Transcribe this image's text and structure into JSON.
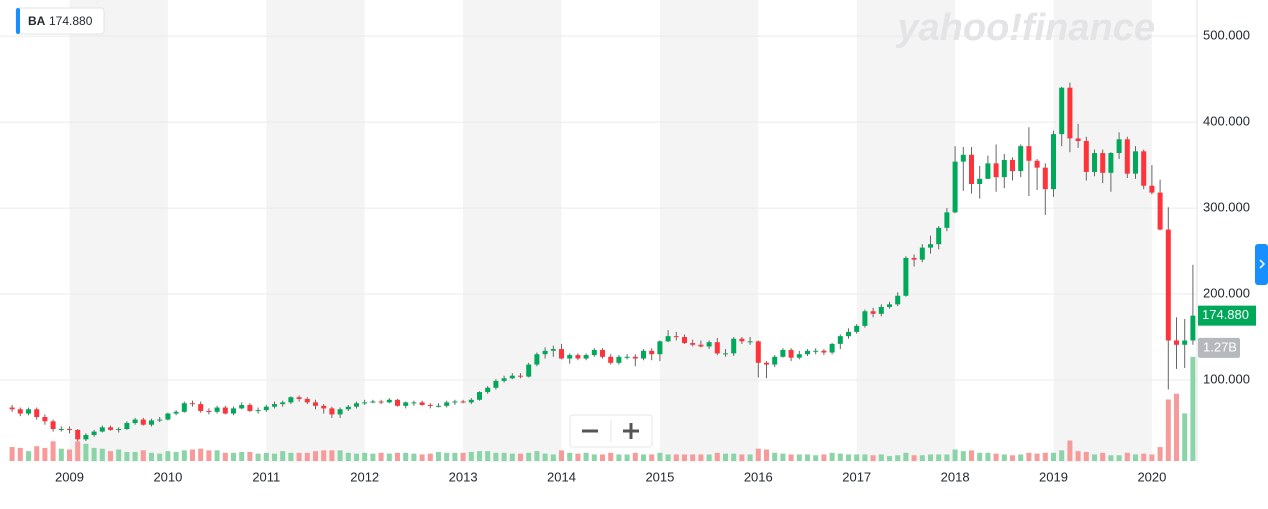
{
  "chart_data": {
    "type": "candlestick",
    "symbol": "BA",
    "last_price_label": "174.880",
    "last_volume_label": "1.27B",
    "watermark": "yahoo!finance",
    "up_color": "#00a85a",
    "down_color": "#ff333a",
    "up_volume_color": "#8ad4a8",
    "down_volume_color": "#f79a9a",
    "open": [
      68,
      66,
      61,
      66,
      57,
      52,
      43,
      43,
      42,
      31,
      36,
      40,
      45,
      42,
      43,
      50,
      54,
      48,
      53,
      54,
      61,
      63,
      73,
      72,
      64,
      63,
      68,
      61,
      67,
      71,
      64,
      65,
      69,
      72,
      74,
      80,
      78,
      74,
      70,
      67,
      60,
      66,
      69,
      73,
      74,
      75,
      74,
      77,
      70,
      74,
      74,
      71,
      70,
      70,
      74,
      75,
      74,
      77,
      86,
      91,
      99,
      102,
      105,
      104,
      118,
      130,
      134,
      136,
      125,
      129,
      125,
      129,
      135,
      127,
      120,
      127,
      127,
      125,
      134,
      130,
      145,
      151,
      150,
      143,
      141,
      139,
      144,
      131,
      131,
      148,
      145,
      145,
      120,
      118,
      127,
      135,
      126,
      130,
      134,
      134,
      132,
      142,
      151,
      156,
      163,
      180,
      177,
      185,
      188,
      198,
      242,
      240,
      254,
      258,
      277,
      295,
      354,
      362,
      328,
      334,
      352,
      336,
      356,
      343,
      372,
      355,
      347,
      322,
      386,
      440,
      381,
      378,
      342,
      364,
      341,
      364,
      380,
      340,
      366,
      326,
      318,
      275,
      146,
      141,
      146
    ],
    "high": [
      71,
      68,
      68,
      68,
      60,
      54,
      46,
      46,
      43,
      38,
      42,
      47,
      47,
      45,
      52,
      56,
      56,
      55,
      57,
      62,
      65,
      75,
      76,
      75,
      67,
      70,
      70,
      69,
      74,
      73,
      68,
      71,
      75,
      76,
      81,
      82,
      80,
      77,
      72,
      69,
      68,
      71,
      75,
      77,
      77,
      77,
      79,
      78,
      75,
      76,
      76,
      73,
      73,
      76,
      77,
      77,
      79,
      87,
      93,
      101,
      105,
      108,
      108,
      120,
      132,
      138,
      140,
      142,
      131,
      131,
      131,
      137,
      137,
      130,
      129,
      130,
      130,
      136,
      137,
      146,
      158,
      156,
      153,
      147,
      146,
      146,
      149,
      136,
      150,
      150,
      150,
      146,
      122,
      129,
      137,
      137,
      134,
      136,
      137,
      136,
      143,
      153,
      160,
      165,
      182,
      184,
      188,
      191,
      202,
      244,
      246,
      258,
      268,
      279,
      300,
      372,
      371,
      371,
      349,
      361,
      374,
      363,
      359,
      374,
      394,
      357,
      352,
      390,
      441,
      446,
      398,
      383,
      368,
      368,
      365,
      388,
      383,
      372,
      368,
      350,
      333,
      301,
      173,
      171,
      234
    ],
    "low": [
      63,
      58,
      59,
      54,
      48,
      40,
      40,
      38,
      29,
      29,
      34,
      39,
      41,
      39,
      42,
      48,
      47,
      46,
      51,
      53,
      59,
      62,
      69,
      62,
      60,
      61,
      60,
      59,
      66,
      63,
      61,
      63,
      67,
      69,
      72,
      75,
      72,
      66,
      61,
      56,
      56,
      64,
      67,
      71,
      73,
      72,
      73,
      69,
      67,
      70,
      70,
      67,
      68,
      68,
      71,
      73,
      72,
      76,
      84,
      89,
      97,
      101,
      102,
      103,
      116,
      125,
      127,
      124,
      119,
      123,
      123,
      127,
      125,
      118,
      118,
      124,
      116,
      123,
      123,
      122,
      144,
      146,
      142,
      139,
      138,
      136,
      129,
      127,
      128,
      142,
      141,
      103,
      102,
      115,
      126,
      122,
      124,
      128,
      130,
      129,
      130,
      136,
      148,
      154,
      161,
      173,
      174,
      183,
      186,
      197,
      232,
      237,
      247,
      252,
      273,
      294,
      320,
      317,
      311,
      334,
      319,
      323,
      332,
      336,
      314,
      321,
      292,
      313,
      372,
      365,
      370,
      332,
      337,
      329,
      319,
      357,
      335,
      334,
      322,
      316,
      274,
      89,
      113,
      114,
      141
    ],
    "close": [
      66,
      61,
      66,
      57,
      52,
      43,
      43,
      42,
      31,
      36,
      40,
      45,
      42,
      43,
      50,
      54,
      48,
      53,
      54,
      61,
      63,
      73,
      72,
      64,
      63,
      68,
      61,
      67,
      71,
      64,
      65,
      69,
      72,
      74,
      80,
      78,
      74,
      70,
      67,
      60,
      66,
      69,
      73,
      74,
      75,
      74,
      77,
      70,
      74,
      74,
      71,
      70,
      70,
      74,
      75,
      74,
      77,
      86,
      91,
      99,
      102,
      105,
      104,
      118,
      130,
      134,
      136,
      125,
      129,
      125,
      129,
      135,
      127,
      120,
      127,
      127,
      125,
      134,
      130,
      145,
      151,
      150,
      143,
      141,
      139,
      144,
      131,
      131,
      148,
      145,
      145,
      120,
      118,
      127,
      135,
      126,
      130,
      134,
      134,
      132,
      142,
      151,
      156,
      163,
      180,
      177,
      185,
      188,
      198,
      242,
      240,
      254,
      258,
      277,
      295,
      354,
      362,
      328,
      334,
      352,
      336,
      356,
      343,
      372,
      355,
      347,
      322,
      386,
      440,
      381,
      378,
      342,
      364,
      341,
      364,
      380,
      340,
      366,
      326,
      318,
      275,
      146,
      141,
      146,
      174.88
    ],
    "volume": [
      0.17,
      0.16,
      0.12,
      0.18,
      0.16,
      0.24,
      0.15,
      0.14,
      0.24,
      0.21,
      0.16,
      0.15,
      0.12,
      0.14,
      0.11,
      0.11,
      0.13,
      0.1,
      0.09,
      0.12,
      0.11,
      0.13,
      0.14,
      0.15,
      0.13,
      0.13,
      0.1,
      0.1,
      0.11,
      0.11,
      0.09,
      0.1,
      0.09,
      0.12,
      0.1,
      0.1,
      0.1,
      0.12,
      0.13,
      0.13,
      0.13,
      0.1,
      0.09,
      0.1,
      0.09,
      0.1,
      0.09,
      0.1,
      0.1,
      0.09,
      0.08,
      0.09,
      0.11,
      0.1,
      0.1,
      0.1,
      0.11,
      0.12,
      0.12,
      0.1,
      0.1,
      0.09,
      0.09,
      0.1,
      0.12,
      0.09,
      0.08,
      0.13,
      0.1,
      0.09,
      0.1,
      0.08,
      0.08,
      0.1,
      0.08,
      0.08,
      0.1,
      0.08,
      0.08,
      0.1,
      0.08,
      0.08,
      0.08,
      0.08,
      0.08,
      0.08,
      0.1,
      0.09,
      0.09,
      0.08,
      0.08,
      0.15,
      0.14,
      0.1,
      0.09,
      0.08,
      0.08,
      0.08,
      0.07,
      0.08,
      0.1,
      0.09,
      0.08,
      0.08,
      0.08,
      0.07,
      0.08,
      0.06,
      0.07,
      0.1,
      0.07,
      0.07,
      0.08,
      0.08,
      0.08,
      0.14,
      0.12,
      0.13,
      0.1,
      0.1,
      0.09,
      0.08,
      0.07,
      0.08,
      0.1,
      0.09,
      0.1,
      0.1,
      0.13,
      0.25,
      0.12,
      0.11,
      0.08,
      0.1,
      0.07,
      0.07,
      0.1,
      0.08,
      0.09,
      0.08,
      0.17,
      0.75,
      0.82,
      0.58,
      1.27
    ],
    "xlim": [
      -0.5,
      144.5
    ],
    "xticks": [
      {
        "value": 7,
        "label": "2009"
      },
      {
        "value": 19,
        "label": "2010"
      },
      {
        "value": 31,
        "label": "2011"
      },
      {
        "value": 43,
        "label": "2012"
      },
      {
        "value": 55,
        "label": "2013"
      },
      {
        "value": 67,
        "label": "2014"
      },
      {
        "value": 79,
        "label": "2015"
      },
      {
        "value": 91,
        "label": "2016"
      },
      {
        "value": 103,
        "label": "2017"
      },
      {
        "value": 115,
        "label": "2018"
      },
      {
        "value": 127,
        "label": "2019"
      },
      {
        "value": 139,
        "label": "2020"
      }
    ],
    "ylim": [
      0,
      542
    ],
    "yticks": [
      {
        "value": 100,
        "label": "100.000"
      },
      {
        "value": 200,
        "label": "200.000"
      },
      {
        "value": 300,
        "label": "300.000"
      },
      {
        "value": 400,
        "label": "400.000"
      },
      {
        "value": 500,
        "label": "500.000"
      }
    ],
    "grid": true
  }
}
